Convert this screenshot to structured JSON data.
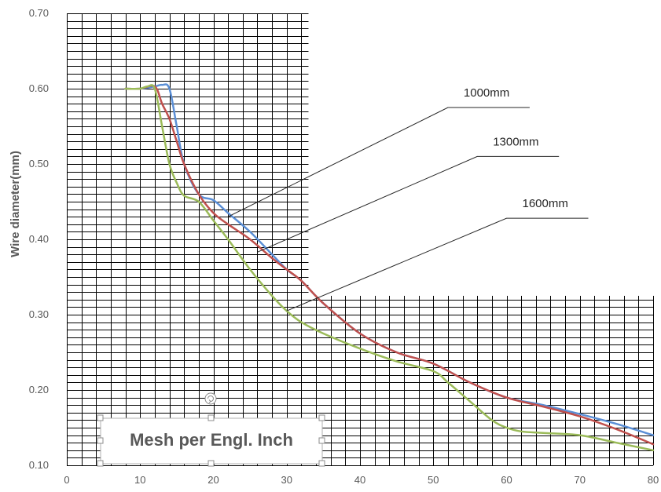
{
  "chart_data": {
    "type": "line",
    "title": "",
    "xlabel": "Mesh per Engl. Inch",
    "ylabel": "Wire diameter(mm)",
    "xlim": [
      0,
      80
    ],
    "ylim": [
      0.1,
      0.7
    ],
    "x_ticks": [
      "0",
      "10",
      "20",
      "30",
      "40",
      "50",
      "60",
      "70",
      "80"
    ],
    "y_ticks": [
      "0.10",
      "0.20",
      "0.30",
      "0.40",
      "0.50",
      "0.60",
      "0.70"
    ],
    "grid": true,
    "legend": "none",
    "series": [
      {
        "name": "1000mm",
        "color": "#5b8fd6",
        "points": [
          [
            8,
            0.6
          ],
          [
            10,
            0.6
          ],
          [
            12,
            0.603
          ],
          [
            13,
            0.605
          ],
          [
            14,
            0.6
          ],
          [
            15,
            0.55
          ],
          [
            16,
            0.5
          ],
          [
            18,
            0.46
          ],
          [
            20,
            0.452
          ],
          [
            22,
            0.435
          ],
          [
            25,
            0.41
          ],
          [
            28,
            0.38
          ],
          [
            30,
            0.36
          ],
          [
            32,
            0.345
          ],
          [
            35,
            0.315
          ],
          [
            40,
            0.275
          ],
          [
            45,
            0.25
          ],
          [
            50,
            0.235
          ],
          [
            55,
            0.21
          ],
          [
            60,
            0.19
          ],
          [
            65,
            0.18
          ],
          [
            70,
            0.168
          ],
          [
            75,
            0.155
          ],
          [
            80,
            0.14
          ]
        ]
      },
      {
        "name": "1300mm",
        "color": "#c0504d",
        "points": [
          [
            8,
            0.6
          ],
          [
            10,
            0.6
          ],
          [
            12,
            0.603
          ],
          [
            13,
            0.58
          ],
          [
            14,
            0.56
          ],
          [
            15,
            0.53
          ],
          [
            16,
            0.5
          ],
          [
            18,
            0.46
          ],
          [
            20,
            0.435
          ],
          [
            22,
            0.42
          ],
          [
            25,
            0.4
          ],
          [
            28,
            0.375
          ],
          [
            30,
            0.36
          ],
          [
            32,
            0.345
          ],
          [
            35,
            0.315
          ],
          [
            40,
            0.275
          ],
          [
            45,
            0.25
          ],
          [
            50,
            0.235
          ],
          [
            55,
            0.21
          ],
          [
            60,
            0.19
          ],
          [
            65,
            0.178
          ],
          [
            70,
            0.165
          ],
          [
            75,
            0.148
          ],
          [
            80,
            0.128
          ]
        ]
      },
      {
        "name": "1600mm",
        "color": "#9bbb59",
        "points": [
          [
            8,
            0.6
          ],
          [
            10,
            0.6
          ],
          [
            11,
            0.603
          ],
          [
            12,
            0.6
          ],
          [
            13,
            0.55
          ],
          [
            14,
            0.5
          ],
          [
            15,
            0.475
          ],
          [
            16,
            0.458
          ],
          [
            18,
            0.45
          ],
          [
            20,
            0.425
          ],
          [
            22,
            0.4
          ],
          [
            25,
            0.36
          ],
          [
            28,
            0.325
          ],
          [
            30,
            0.305
          ],
          [
            32,
            0.29
          ],
          [
            35,
            0.275
          ],
          [
            40,
            0.255
          ],
          [
            45,
            0.238
          ],
          [
            50,
            0.225
          ],
          [
            52,
            0.21
          ],
          [
            55,
            0.185
          ],
          [
            58,
            0.16
          ],
          [
            60,
            0.15
          ],
          [
            62,
            0.145
          ],
          [
            65,
            0.143
          ],
          [
            70,
            0.14
          ],
          [
            75,
            0.13
          ],
          [
            80,
            0.12
          ]
        ]
      }
    ],
    "annotations": [
      {
        "text": "1000mm",
        "series": "1000mm",
        "at_x": 22,
        "at_y": 0.43,
        "label_x": 52,
        "label_y": 0.575
      },
      {
        "text": "1300mm",
        "series": "1300mm",
        "at_x": 26,
        "at_y": 0.383,
        "label_x": 56,
        "label_y": 0.51
      },
      {
        "text": "1600mm",
        "series": "1600mm",
        "at_x": 30,
        "at_y": 0.305,
        "label_x": 60,
        "label_y": 0.428
      }
    ]
  }
}
